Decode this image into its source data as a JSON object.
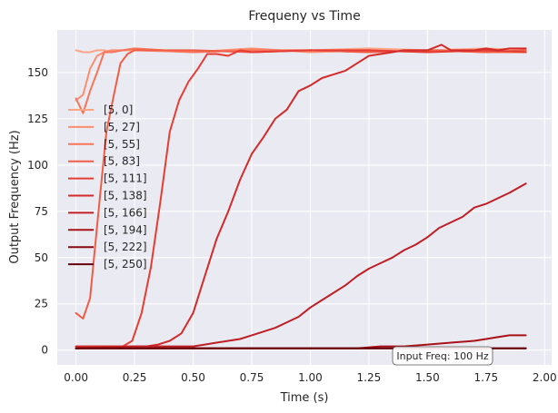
{
  "chart_data": {
    "type": "line",
    "title": "Frequeny vs Time",
    "xlabel": "Time (s)",
    "ylabel": "Output Frequency (Hz)",
    "xlim": [
      -0.08,
      2.03
    ],
    "ylim": [
      -8,
      173
    ],
    "xticks": [
      0.0,
      0.25,
      0.5,
      0.75,
      1.0,
      1.25,
      1.5,
      1.75,
      2.0
    ],
    "xtick_labels": [
      "0.00",
      "0.25",
      "0.50",
      "0.75",
      "1.00",
      "1.25",
      "1.50",
      "1.75",
      "2.00"
    ],
    "yticks": [
      0,
      25,
      50,
      75,
      100,
      125,
      150
    ],
    "ytick_labels": [
      "0",
      "25",
      "50",
      "75",
      "100",
      "125",
      "150"
    ],
    "grid": true,
    "legend_position": "center-left",
    "annotation": "Input Freq: 100 Hz",
    "series": [
      {
        "name": "[5, 0]",
        "color": "#fca486",
        "x": [
          0.0,
          0.03,
          0.06,
          0.09,
          0.12,
          0.15,
          0.25,
          0.5,
          0.75,
          1.0,
          1.25,
          1.5,
          1.75,
          1.92
        ],
        "y": [
          162,
          161,
          161,
          162,
          162,
          161,
          163,
          161,
          162,
          162,
          163,
          162,
          163,
          162
        ]
      },
      {
        "name": "[5, 27]",
        "color": "#fb8e6e",
        "x": [
          0.0,
          0.03,
          0.06,
          0.09,
          0.12,
          0.15,
          0.25,
          0.5,
          0.75,
          1.0,
          1.25,
          1.5,
          1.75,
          1.92
        ],
        "y": [
          135,
          138,
          152,
          159,
          161,
          162,
          162,
          161,
          163,
          161,
          162,
          161,
          162,
          161
        ]
      },
      {
        "name": "[5, 55]",
        "color": "#f7745a",
        "x": [
          0.0,
          0.03,
          0.06,
          0.09,
          0.12,
          0.15,
          0.2,
          0.25,
          0.5,
          0.75,
          1.0,
          1.25,
          1.5,
          1.75,
          1.92
        ],
        "y": [
          136,
          128,
          140,
          150,
          161,
          161,
          162,
          163,
          161,
          162,
          162,
          161,
          162,
          161,
          161
        ]
      },
      {
        "name": "[5, 83]",
        "color": "#f05c46",
        "x": [
          0.0,
          0.03,
          0.06,
          0.1,
          0.13,
          0.16,
          0.19,
          0.22,
          0.25,
          0.5,
          0.75,
          1.0,
          1.25,
          1.5,
          1.75,
          1.92
        ],
        "y": [
          20,
          17,
          28,
          80,
          118,
          137,
          155,
          160,
          162,
          162,
          161,
          162,
          161,
          162,
          161,
          162
        ]
      },
      {
        "name": "[5, 111]",
        "color": "#e53d33",
        "x": [
          0.0,
          0.1,
          0.2,
          0.24,
          0.28,
          0.32,
          0.36,
          0.4,
          0.44,
          0.48,
          0.52,
          0.56,
          0.6,
          0.65,
          0.7,
          0.75,
          1.0,
          1.25,
          1.5,
          1.75,
          1.92
        ],
        "y": [
          2,
          2,
          2,
          5,
          20,
          45,
          80,
          118,
          135,
          145,
          152,
          160,
          160,
          159,
          162,
          161,
          162,
          162,
          161,
          162,
          161
        ]
      },
      {
        "name": "[5, 138]",
        "color": "#d32a2a",
        "x": [
          0.0,
          0.2,
          0.3,
          0.35,
          0.4,
          0.45,
          0.5,
          0.55,
          0.6,
          0.65,
          0.7,
          0.75,
          0.8,
          0.85,
          0.9,
          0.95,
          1.0,
          1.05,
          1.1,
          1.15,
          1.2,
          1.25,
          1.3,
          1.35,
          1.4,
          1.5,
          1.56,
          1.6,
          1.7,
          1.75,
          1.8,
          1.85,
          1.92
        ],
        "y": [
          2,
          2,
          2,
          3,
          5,
          9,
          20,
          40,
          60,
          75,
          92,
          106,
          115,
          125,
          130,
          140,
          143,
          147,
          149,
          151,
          155,
          159,
          160,
          161,
          162,
          162,
          165,
          162,
          162,
          163,
          162,
          163,
          163
        ]
      },
      {
        "name": "[5, 166]",
        "color": "#bf1e24",
        "x": [
          0.0,
          0.25,
          0.5,
          0.55,
          0.6,
          0.65,
          0.7,
          0.75,
          0.8,
          0.85,
          0.9,
          0.95,
          1.0,
          1.05,
          1.1,
          1.15,
          1.2,
          1.25,
          1.3,
          1.35,
          1.4,
          1.45,
          1.5,
          1.55,
          1.6,
          1.65,
          1.7,
          1.75,
          1.8,
          1.85,
          1.92
        ],
        "y": [
          1,
          2,
          2,
          3,
          4,
          5,
          6,
          8,
          10,
          12,
          15,
          18,
          23,
          27,
          31,
          35,
          40,
          44,
          47,
          50,
          54,
          57,
          61,
          66,
          69,
          72,
          77,
          79,
          82,
          85,
          90
        ]
      },
      {
        "name": "[5, 194]",
        "color": "#a91017",
        "x": [
          0.0,
          0.5,
          1.0,
          1.1,
          1.2,
          1.3,
          1.4,
          1.5,
          1.6,
          1.7,
          1.75,
          1.8,
          1.85,
          1.9,
          1.92
        ],
        "y": [
          1,
          1,
          1,
          1,
          1,
          2,
          2,
          3,
          4,
          5,
          6,
          7,
          8,
          8,
          8
        ]
      },
      {
        "name": "[5, 222]",
        "color": "#8a0812",
        "x": [
          0.0,
          0.5,
          1.0,
          1.5,
          1.92
        ],
        "y": [
          1,
          1,
          1,
          1,
          1
        ]
      },
      {
        "name": "[5, 250]",
        "color": "#67000d",
        "x": [
          0.0,
          0.5,
          1.0,
          1.5,
          1.92
        ],
        "y": [
          1,
          1,
          1,
          1,
          1
        ]
      }
    ]
  }
}
